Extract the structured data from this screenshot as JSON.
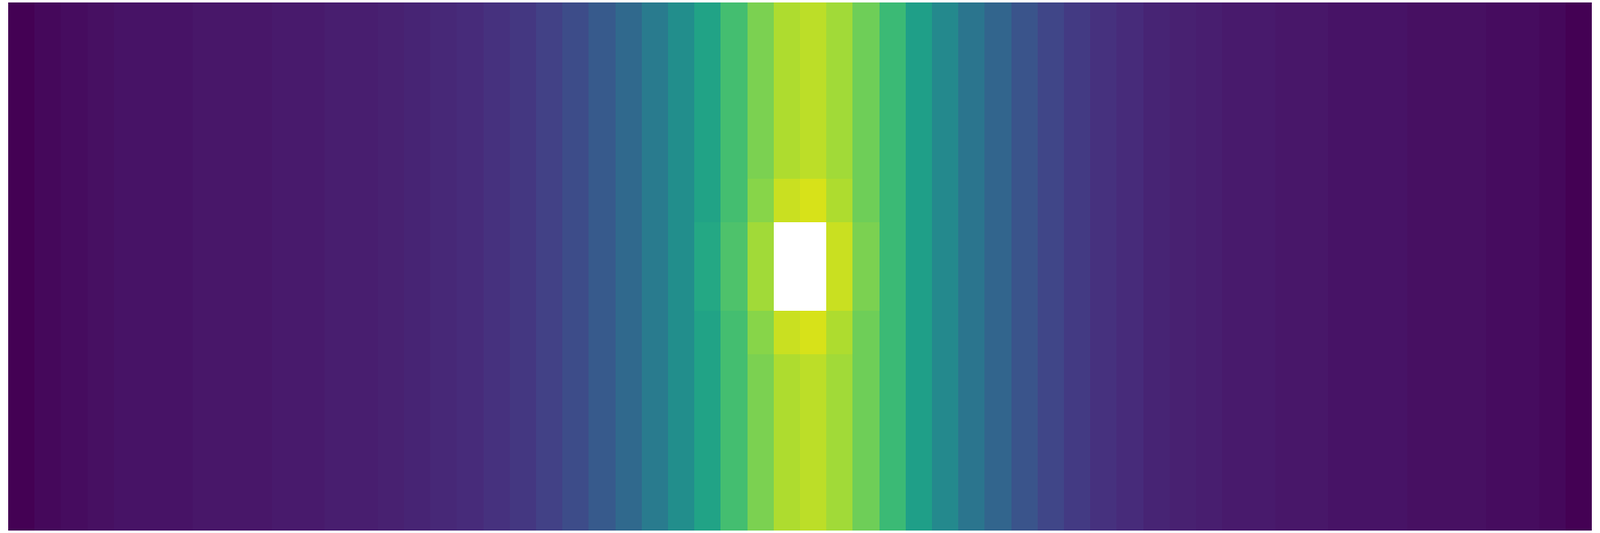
{
  "chart_data": {
    "type": "heatmap",
    "color": "viridis",
    "grid": false,
    "tick_labels": false,
    "zlim": [
      0,
      1
    ],
    "z": [
      [
        0.0,
        0.02,
        0.03,
        0.04,
        0.05,
        0.05,
        0.05,
        0.06,
        0.06,
        0.06,
        0.07,
        0.07,
        0.08,
        0.08,
        0.09,
        0.1,
        0.11,
        0.12,
        0.14,
        0.16,
        0.19,
        0.23,
        0.28,
        0.34,
        0.41,
        0.49,
        0.58,
        0.7,
        0.8,
        0.88,
        0.9,
        0.86,
        0.78,
        0.68,
        0.56,
        0.47,
        0.39,
        0.32,
        0.26,
        0.21,
        0.17,
        0.14,
        0.12,
        0.1,
        0.09,
        0.08,
        0.07,
        0.07,
        0.06,
        0.06,
        0.05,
        0.05,
        0.05,
        0.04,
        0.04,
        0.04,
        0.03,
        0.03,
        0.02,
        0.0
      ],
      [
        0.0,
        0.02,
        0.03,
        0.04,
        0.05,
        0.05,
        0.05,
        0.06,
        0.06,
        0.06,
        0.07,
        0.07,
        0.08,
        0.08,
        0.09,
        0.1,
        0.11,
        0.12,
        0.14,
        0.16,
        0.19,
        0.23,
        0.28,
        0.34,
        0.41,
        0.49,
        0.58,
        0.7,
        0.8,
        0.88,
        0.9,
        0.86,
        0.78,
        0.68,
        0.56,
        0.47,
        0.39,
        0.32,
        0.26,
        0.21,
        0.17,
        0.14,
        0.12,
        0.1,
        0.09,
        0.08,
        0.07,
        0.07,
        0.06,
        0.06,
        0.05,
        0.05,
        0.05,
        0.04,
        0.04,
        0.04,
        0.03,
        0.03,
        0.02,
        0.0
      ],
      [
        0.0,
        0.02,
        0.03,
        0.04,
        0.05,
        0.05,
        0.05,
        0.06,
        0.06,
        0.06,
        0.07,
        0.07,
        0.08,
        0.08,
        0.09,
        0.1,
        0.11,
        0.12,
        0.14,
        0.16,
        0.19,
        0.23,
        0.28,
        0.34,
        0.41,
        0.49,
        0.58,
        0.7,
        0.8,
        0.88,
        0.9,
        0.86,
        0.78,
        0.68,
        0.56,
        0.47,
        0.39,
        0.32,
        0.26,
        0.21,
        0.17,
        0.14,
        0.12,
        0.1,
        0.09,
        0.08,
        0.07,
        0.07,
        0.06,
        0.06,
        0.05,
        0.05,
        0.05,
        0.04,
        0.04,
        0.04,
        0.03,
        0.03,
        0.02,
        0.0
      ],
      [
        0.0,
        0.02,
        0.03,
        0.04,
        0.05,
        0.05,
        0.05,
        0.06,
        0.06,
        0.06,
        0.07,
        0.07,
        0.08,
        0.08,
        0.09,
        0.1,
        0.11,
        0.12,
        0.14,
        0.16,
        0.19,
        0.23,
        0.28,
        0.34,
        0.41,
        0.49,
        0.58,
        0.7,
        0.8,
        0.88,
        0.9,
        0.86,
        0.78,
        0.68,
        0.56,
        0.47,
        0.39,
        0.32,
        0.26,
        0.21,
        0.17,
        0.14,
        0.12,
        0.1,
        0.09,
        0.08,
        0.07,
        0.07,
        0.06,
        0.06,
        0.05,
        0.05,
        0.05,
        0.04,
        0.04,
        0.04,
        0.03,
        0.03,
        0.02,
        0.0
      ],
      [
        0.0,
        0.02,
        0.03,
        0.04,
        0.05,
        0.05,
        0.05,
        0.06,
        0.06,
        0.06,
        0.07,
        0.07,
        0.08,
        0.08,
        0.09,
        0.1,
        0.11,
        0.12,
        0.14,
        0.16,
        0.19,
        0.23,
        0.28,
        0.34,
        0.41,
        0.49,
        0.58,
        0.7,
        0.82,
        0.92,
        0.94,
        0.88,
        0.78,
        0.68,
        0.56,
        0.47,
        0.39,
        0.32,
        0.26,
        0.21,
        0.17,
        0.14,
        0.12,
        0.1,
        0.09,
        0.08,
        0.07,
        0.07,
        0.06,
        0.06,
        0.05,
        0.05,
        0.05,
        0.04,
        0.04,
        0.04,
        0.03,
        0.03,
        0.02,
        0.0
      ],
      [
        0.0,
        0.02,
        0.03,
        0.04,
        0.05,
        0.05,
        0.05,
        0.06,
        0.06,
        0.06,
        0.07,
        0.07,
        0.08,
        0.08,
        0.09,
        0.1,
        0.11,
        0.12,
        0.14,
        0.16,
        0.19,
        0.23,
        0.28,
        0.34,
        0.41,
        0.49,
        0.6,
        0.72,
        0.86,
        null,
        null,
        0.92,
        0.8,
        0.68,
        0.56,
        0.47,
        0.39,
        0.32,
        0.26,
        0.21,
        0.17,
        0.14,
        0.12,
        0.1,
        0.09,
        0.08,
        0.07,
        0.07,
        0.06,
        0.06,
        0.05,
        0.05,
        0.05,
        0.04,
        0.04,
        0.04,
        0.03,
        0.03,
        0.02,
        0.0
      ],
      [
        0.0,
        0.02,
        0.03,
        0.04,
        0.05,
        0.05,
        0.05,
        0.06,
        0.06,
        0.06,
        0.07,
        0.07,
        0.08,
        0.08,
        0.09,
        0.1,
        0.11,
        0.12,
        0.14,
        0.16,
        0.19,
        0.23,
        0.28,
        0.34,
        0.41,
        0.49,
        0.6,
        0.72,
        0.86,
        null,
        null,
        0.92,
        0.8,
        0.68,
        0.56,
        0.47,
        0.39,
        0.32,
        0.26,
        0.21,
        0.17,
        0.14,
        0.12,
        0.1,
        0.09,
        0.08,
        0.07,
        0.07,
        0.06,
        0.06,
        0.05,
        0.05,
        0.05,
        0.04,
        0.04,
        0.04,
        0.03,
        0.03,
        0.02,
        0.0
      ],
      [
        0.0,
        0.02,
        0.03,
        0.04,
        0.05,
        0.05,
        0.05,
        0.06,
        0.06,
        0.06,
        0.07,
        0.07,
        0.08,
        0.08,
        0.09,
        0.1,
        0.11,
        0.12,
        0.14,
        0.16,
        0.19,
        0.23,
        0.28,
        0.34,
        0.41,
        0.49,
        0.58,
        0.7,
        0.82,
        0.92,
        0.94,
        0.88,
        0.78,
        0.68,
        0.56,
        0.47,
        0.39,
        0.32,
        0.26,
        0.21,
        0.17,
        0.14,
        0.12,
        0.1,
        0.09,
        0.08,
        0.07,
        0.07,
        0.06,
        0.06,
        0.05,
        0.05,
        0.05,
        0.04,
        0.04,
        0.04,
        0.03,
        0.03,
        0.02,
        0.0
      ],
      [
        0.0,
        0.02,
        0.03,
        0.04,
        0.05,
        0.05,
        0.05,
        0.06,
        0.06,
        0.06,
        0.07,
        0.07,
        0.08,
        0.08,
        0.09,
        0.1,
        0.11,
        0.12,
        0.14,
        0.16,
        0.19,
        0.23,
        0.28,
        0.34,
        0.41,
        0.49,
        0.58,
        0.7,
        0.8,
        0.88,
        0.9,
        0.86,
        0.78,
        0.68,
        0.56,
        0.47,
        0.39,
        0.32,
        0.26,
        0.21,
        0.17,
        0.14,
        0.12,
        0.1,
        0.09,
        0.08,
        0.07,
        0.07,
        0.06,
        0.06,
        0.05,
        0.05,
        0.05,
        0.04,
        0.04,
        0.04,
        0.03,
        0.03,
        0.02,
        0.0
      ],
      [
        0.0,
        0.02,
        0.03,
        0.04,
        0.05,
        0.05,
        0.05,
        0.06,
        0.06,
        0.06,
        0.07,
        0.07,
        0.08,
        0.08,
        0.09,
        0.1,
        0.11,
        0.12,
        0.14,
        0.16,
        0.19,
        0.23,
        0.28,
        0.34,
        0.41,
        0.49,
        0.58,
        0.7,
        0.8,
        0.88,
        0.9,
        0.86,
        0.78,
        0.68,
        0.56,
        0.47,
        0.39,
        0.32,
        0.26,
        0.21,
        0.17,
        0.14,
        0.12,
        0.1,
        0.09,
        0.08,
        0.07,
        0.07,
        0.06,
        0.06,
        0.05,
        0.05,
        0.05,
        0.04,
        0.04,
        0.04,
        0.03,
        0.03,
        0.02,
        0.0
      ],
      [
        0.0,
        0.02,
        0.03,
        0.04,
        0.05,
        0.05,
        0.05,
        0.06,
        0.06,
        0.06,
        0.07,
        0.07,
        0.08,
        0.08,
        0.09,
        0.1,
        0.11,
        0.12,
        0.14,
        0.16,
        0.19,
        0.23,
        0.28,
        0.34,
        0.41,
        0.49,
        0.58,
        0.7,
        0.8,
        0.88,
        0.9,
        0.86,
        0.78,
        0.68,
        0.56,
        0.47,
        0.39,
        0.32,
        0.26,
        0.21,
        0.17,
        0.14,
        0.12,
        0.1,
        0.09,
        0.08,
        0.07,
        0.07,
        0.06,
        0.06,
        0.05,
        0.05,
        0.05,
        0.04,
        0.04,
        0.04,
        0.03,
        0.03,
        0.02,
        0.0
      ],
      [
        0.0,
        0.02,
        0.03,
        0.04,
        0.05,
        0.05,
        0.05,
        0.06,
        0.06,
        0.06,
        0.07,
        0.07,
        0.08,
        0.08,
        0.09,
        0.1,
        0.11,
        0.12,
        0.14,
        0.16,
        0.19,
        0.23,
        0.28,
        0.34,
        0.41,
        0.49,
        0.58,
        0.7,
        0.8,
        0.88,
        0.9,
        0.86,
        0.78,
        0.68,
        0.56,
        0.47,
        0.39,
        0.32,
        0.26,
        0.21,
        0.17,
        0.14,
        0.12,
        0.1,
        0.09,
        0.08,
        0.07,
        0.07,
        0.06,
        0.06,
        0.05,
        0.05,
        0.05,
        0.04,
        0.04,
        0.04,
        0.03,
        0.03,
        0.02,
        0.0
      ]
    ]
  }
}
